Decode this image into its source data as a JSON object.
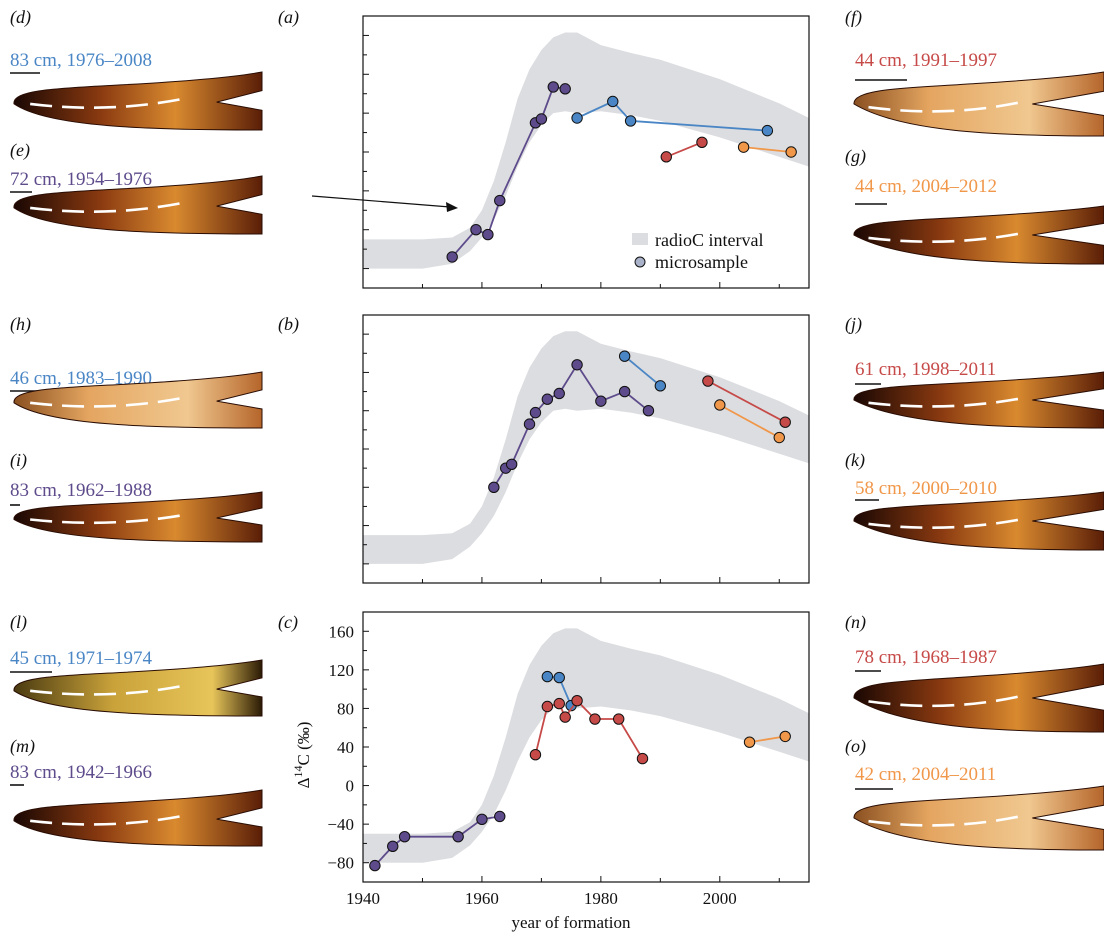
{
  "colors": {
    "band": "#dcdde0",
    "blue": "#4a86c5",
    "purple": "#5e4b8b",
    "red": "#c64a48",
    "orange": "#f0974a",
    "axis": "#111111",
    "sample_legend": "#a9b2c8"
  },
  "panels_images": [
    {
      "letter": "(d)",
      "caption": "83 cm, 1976–2008",
      "color": "blue"
    },
    {
      "letter": "(e)",
      "caption": "72 cm, 1954–1976",
      "color": "purple"
    },
    {
      "letter": "(f)",
      "caption": "44 cm, 1991–1997",
      "color": "red"
    },
    {
      "letter": "(g)",
      "caption": "44 cm, 2004–2012",
      "color": "orange"
    },
    {
      "letter": "(h)",
      "caption": "46 cm, 1983–1990",
      "color": "blue"
    },
    {
      "letter": "(i)",
      "caption": "83 cm, 1962–1988",
      "color": "purple"
    },
    {
      "letter": "(j)",
      "caption": "61 cm, 1998–2011",
      "color": "red"
    },
    {
      "letter": "(k)",
      "caption": "58 cm, 2000–2010",
      "color": "orange"
    },
    {
      "letter": "(l)",
      "caption": "45 cm, 1971–1974",
      "color": "blue"
    },
    {
      "letter": "(m)",
      "caption": "83 cm, 1942–1966",
      "color": "purple"
    },
    {
      "letter": "(n)",
      "caption": "78 cm, 1968–1987",
      "color": "red"
    },
    {
      "letter": "(o)",
      "caption": "42 cm, 2004–2011",
      "color": "orange"
    }
  ],
  "legend": {
    "band": "radioC interval",
    "sample": "microsample"
  },
  "chart_data": [
    {
      "panel": "(a)",
      "type": "line",
      "xlim": [
        1940,
        2015
      ],
      "ylim": [
        -100,
        180
      ],
      "band": {
        "x": [
          1940,
          1950,
          1955,
          1958,
          1960,
          1962,
          1964,
          1966,
          1968,
          1970,
          1972,
          1974,
          1976,
          1980,
          1985,
          1990,
          2000,
          2010,
          2015
        ],
        "lower": [
          -80,
          -80,
          -75,
          -62,
          -48,
          -30,
          -5,
          25,
          50,
          68,
          80,
          82,
          80,
          82,
          78,
          72,
          55,
          35,
          25
        ],
        "upper": [
          -50,
          -50,
          -48,
          -38,
          -20,
          10,
          50,
          95,
          125,
          145,
          158,
          163,
          163,
          150,
          142,
          135,
          115,
          90,
          75
        ]
      },
      "series": [
        {
          "color": "purple",
          "points": [
            [
              1955,
              -68
            ],
            [
              1959,
              -40
            ],
            [
              1961,
              -45
            ],
            [
              1963,
              -10
            ],
            [
              1969,
              70
            ],
            [
              1970,
              74
            ],
            [
              1972,
              107
            ],
            [
              1974,
              105
            ]
          ]
        },
        {
          "color": "blue",
          "points": [
            [
              1976,
              75
            ],
            [
              1982,
              92
            ],
            [
              1985,
              72
            ],
            [
              2008,
              62
            ]
          ]
        },
        {
          "color": "red",
          "points": [
            [
              1991,
              35
            ],
            [
              1997,
              50
            ]
          ]
        },
        {
          "color": "orange",
          "points": [
            [
              2004,
              45
            ],
            [
              2012,
              40
            ]
          ]
        }
      ]
    },
    {
      "panel": "(b)",
      "type": "line",
      "xlim": [
        1940,
        2015
      ],
      "ylim": [
        -100,
        180
      ],
      "band": {
        "x": [
          1940,
          1950,
          1955,
          1958,
          1960,
          1962,
          1964,
          1966,
          1968,
          1970,
          1972,
          1974,
          1976,
          1980,
          1985,
          1990,
          2000,
          2010,
          2015
        ],
        "lower": [
          -80,
          -80,
          -75,
          -62,
          -48,
          -30,
          -5,
          25,
          50,
          68,
          80,
          82,
          80,
          82,
          78,
          72,
          55,
          35,
          25
        ],
        "upper": [
          -50,
          -50,
          -48,
          -38,
          -20,
          10,
          50,
          95,
          125,
          145,
          158,
          163,
          163,
          150,
          142,
          135,
          115,
          90,
          75
        ]
      },
      "series": [
        {
          "color": "purple",
          "points": [
            [
              1962,
              0
            ],
            [
              1964,
              20
            ],
            [
              1965,
              24
            ],
            [
              1968,
              66
            ],
            [
              1969,
              78
            ],
            [
              1971,
              92
            ],
            [
              1973,
              98
            ],
            [
              1976,
              128
            ],
            [
              1980,
              90
            ],
            [
              1984,
              100
            ],
            [
              1988,
              80
            ]
          ]
        },
        {
          "color": "blue",
          "points": [
            [
              1984,
              137
            ],
            [
              1990,
              106
            ]
          ]
        },
        {
          "color": "red",
          "points": [
            [
              1998,
              111
            ],
            [
              2011,
              68
            ]
          ]
        },
        {
          "color": "orange",
          "points": [
            [
              2000,
              86
            ],
            [
              2010,
              52
            ]
          ]
        }
      ]
    },
    {
      "panel": "(c)",
      "type": "line",
      "xlim": [
        1940,
        2015
      ],
      "ylim": [
        -100,
        180
      ],
      "xticks": [
        1940,
        1960,
        1980,
        2000
      ],
      "yticks": [
        -80,
        -40,
        0,
        40,
        80,
        120,
        160
      ],
      "xtick_labels": [
        "1940",
        "1960",
        "1980",
        "2000"
      ],
      "ytick_labels": [
        "−80",
        "−40",
        "0",
        "40",
        "80",
        "120",
        "160"
      ],
      "xlabel": "year of formation",
      "ylabel_main": "Δ",
      "ylabel_sup": "14",
      "ylabel_rest": "C (‰)",
      "band": {
        "x": [
          1940,
          1950,
          1955,
          1958,
          1960,
          1962,
          1964,
          1966,
          1968,
          1970,
          1972,
          1974,
          1976,
          1980,
          1985,
          1990,
          2000,
          2010,
          2015
        ],
        "lower": [
          -80,
          -80,
          -75,
          -62,
          -48,
          -30,
          -5,
          25,
          50,
          68,
          80,
          82,
          80,
          82,
          78,
          72,
          55,
          35,
          25
        ],
        "upper": [
          -50,
          -50,
          -48,
          -38,
          -20,
          10,
          50,
          95,
          125,
          145,
          158,
          163,
          163,
          150,
          142,
          135,
          115,
          90,
          75
        ]
      },
      "series": [
        {
          "color": "purple",
          "points": [
            [
              1942,
              -83
            ],
            [
              1945,
              -63
            ],
            [
              1947,
              -53
            ],
            [
              1956,
              -53
            ],
            [
              1960,
              -35
            ],
            [
              1963,
              -32
            ]
          ]
        },
        {
          "color": "blue",
          "points": [
            [
              1971,
              113
            ],
            [
              1973,
              112
            ],
            [
              1975,
              83
            ]
          ]
        },
        {
          "color": "red",
          "points": [
            [
              1969,
              32
            ],
            [
              1971,
              82
            ],
            [
              1973,
              85
            ],
            [
              1974,
              71
            ],
            [
              1976,
              88
            ],
            [
              1979,
              69
            ],
            [
              1983,
              69
            ],
            [
              1987,
              28
            ]
          ]
        },
        {
          "color": "orange",
          "points": [
            [
              2005,
              45
            ],
            [
              2011,
              51
            ]
          ]
        }
      ]
    }
  ]
}
